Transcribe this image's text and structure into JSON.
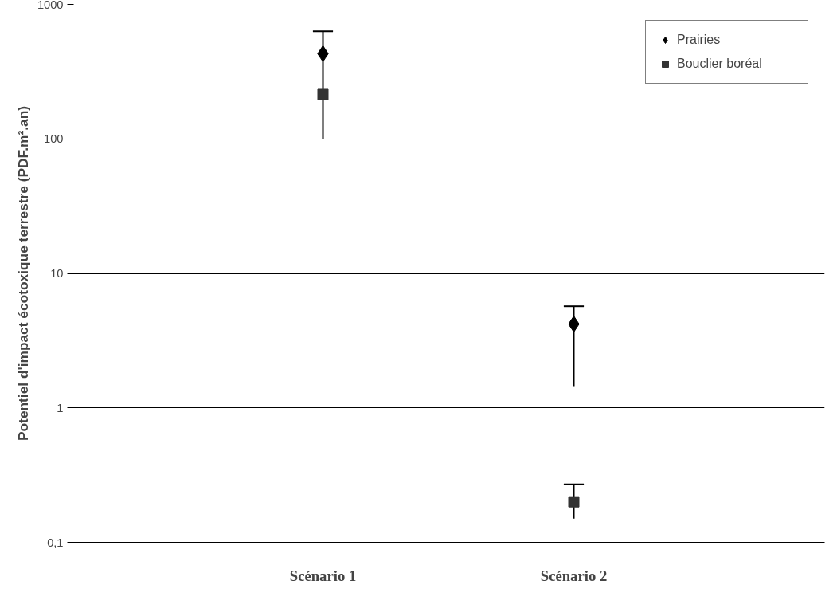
{
  "chart_data": {
    "type": "scatter",
    "ylabel": "Potentiel d'impact écotoxique terrestre (PDF.m².an)",
    "categories": [
      "Scénario 1",
      "Scénario 2"
    ],
    "series": [
      {
        "name": "Prairies",
        "color": "#000000",
        "marker": "diamond",
        "values": [
          430,
          4.2
        ],
        "errors": [
          [
            100,
            630
          ],
          [
            1.45,
            5.7
          ]
        ]
      },
      {
        "name": "Bouclier boréal",
        "color": "#333333",
        "marker": "square",
        "values": [
          214,
          0.2
        ],
        "errors": [
          null,
          [
            0.15,
            0.27
          ]
        ]
      }
    ],
    "log": true,
    "ylim": [
      0.1,
      1000
    ],
    "yticks": [
      {
        "value": 0.1,
        "label": "0,1"
      },
      1,
      10,
      100,
      1000
    ],
    "grid": "y",
    "legend": "top right"
  }
}
